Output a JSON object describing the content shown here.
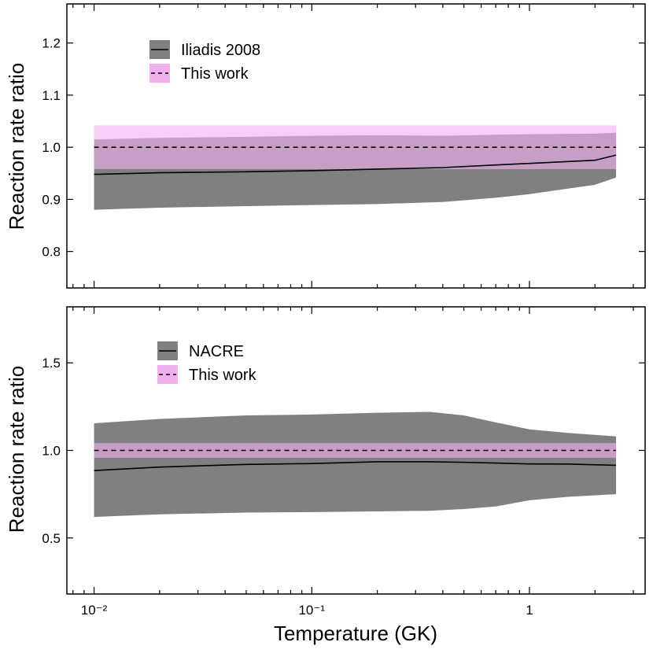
{
  "chart_data": [
    {
      "type": "area",
      "xscale": "log",
      "xlim": [
        0.0075,
        3.4
      ],
      "ylim": [
        0.73,
        1.275
      ],
      "yticks": [
        0.8,
        0.9,
        1.0,
        1.1,
        1.2
      ],
      "ytick_labels": [
        "0.8",
        "0.9",
        "1.0",
        "1.1",
        "1.2"
      ],
      "ylabel": "Reaction rate ratio",
      "legend": {
        "position": "top-left",
        "entries": [
          {
            "label": "Iliadis 2008",
            "band_color": "#808080",
            "line_style": "solid"
          },
          {
            "label": "This work",
            "band_color": "#f0b0f0",
            "line_style": "dashed"
          }
        ]
      },
      "x": [
        0.01,
        0.02,
        0.05,
        0.1,
        0.2,
        0.4,
        0.7,
        1.0,
        2.0,
        2.5
      ],
      "series": [
        {
          "name": "Iliadis 2008",
          "color": "#808080",
          "line_color": "#000000",
          "median": [
            0.948,
            0.951,
            0.953,
            0.955,
            0.958,
            0.961,
            0.966,
            0.969,
            0.975,
            0.985
          ],
          "lower": [
            0.88,
            0.884,
            0.887,
            0.889,
            0.891,
            0.895,
            0.903,
            0.91,
            0.928,
            0.942
          ],
          "upper": [
            1.015,
            1.018,
            1.02,
            1.022,
            1.023,
            1.022,
            1.024,
            1.025,
            1.026,
            1.028
          ]
        },
        {
          "name": "This work",
          "color": "#f0b0f0",
          "line_color": "#000000",
          "median": [
            1.0,
            1.0,
            1.0,
            1.0,
            1.0,
            1.0,
            1.0,
            1.0,
            1.0,
            1.0
          ],
          "lower": [
            0.958,
            0.958,
            0.958,
            0.958,
            0.958,
            0.958,
            0.958,
            0.958,
            0.958,
            0.958
          ],
          "upper": [
            1.042,
            1.042,
            1.042,
            1.042,
            1.042,
            1.042,
            1.042,
            1.042,
            1.042,
            1.042
          ]
        }
      ]
    },
    {
      "type": "area",
      "xscale": "log",
      "xlim": [
        0.0075,
        3.4
      ],
      "ylim": [
        0.18,
        1.82
      ],
      "yticks": [
        0.5,
        1.0,
        1.5
      ],
      "ytick_labels": [
        "0.5",
        "1.0",
        "1.5"
      ],
      "xticks": [
        0.01,
        0.1,
        1
      ],
      "xtick_labels": [
        "10⁻²",
        "10⁻¹",
        "1"
      ],
      "xlabel": "Temperature (GK)",
      "ylabel": "Reaction rate ratio",
      "legend": {
        "position": "top-left",
        "entries": [
          {
            "label": "NACRE",
            "band_color": "#808080",
            "line_style": "solid"
          },
          {
            "label": "This work",
            "band_color": "#f0b0f0",
            "line_style": "dashed"
          }
        ]
      },
      "x": [
        0.01,
        0.02,
        0.05,
        0.1,
        0.2,
        0.35,
        0.5,
        0.7,
        1.0,
        1.5,
        2.5
      ],
      "series": [
        {
          "name": "NACRE",
          "color": "#808080",
          "line_color": "#000000",
          "median": [
            0.885,
            0.905,
            0.92,
            0.925,
            0.935,
            0.935,
            0.932,
            0.928,
            0.923,
            0.922,
            0.915
          ],
          "lower": [
            0.62,
            0.635,
            0.645,
            0.648,
            0.652,
            0.655,
            0.665,
            0.68,
            0.715,
            0.735,
            0.75
          ],
          "upper": [
            1.155,
            1.18,
            1.2,
            1.205,
            1.215,
            1.22,
            1.2,
            1.16,
            1.12,
            1.1,
            1.08
          ]
        },
        {
          "name": "This work",
          "color": "#f0b0f0",
          "line_color": "#000000",
          "median": [
            1.0,
            1.0,
            1.0,
            1.0,
            1.0,
            1.0,
            1.0,
            1.0,
            1.0,
            1.0,
            1.0
          ],
          "lower": [
            0.958,
            0.958,
            0.958,
            0.958,
            0.958,
            0.958,
            0.958,
            0.958,
            0.958,
            0.958,
            0.958
          ],
          "upper": [
            1.042,
            1.042,
            1.042,
            1.042,
            1.042,
            1.042,
            1.042,
            1.042,
            1.042,
            1.042,
            1.042
          ]
        }
      ]
    }
  ]
}
